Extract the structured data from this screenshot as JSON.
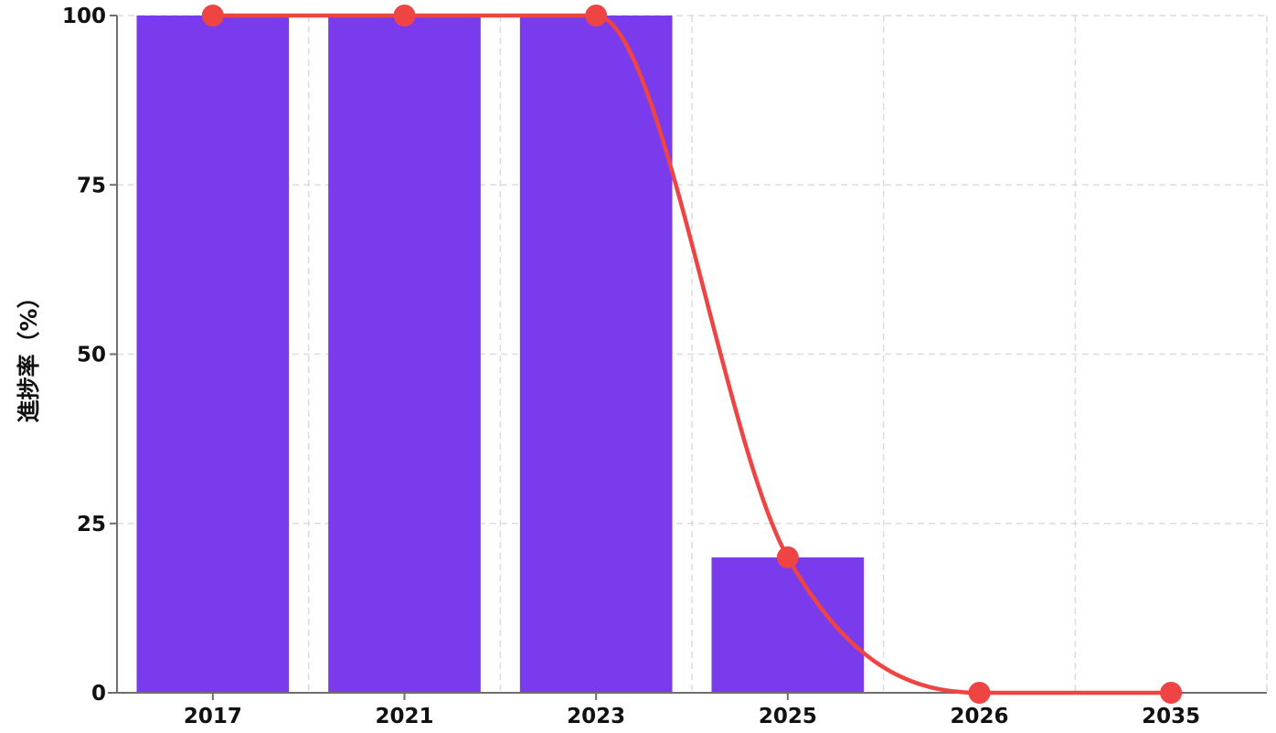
{
  "chart_data": {
    "type": "bar",
    "categories": [
      "2017",
      "2021",
      "2023",
      "2025",
      "2026",
      "2035"
    ],
    "series": [
      {
        "type": "bar",
        "values": [
          100,
          100,
          100,
          20,
          0,
          0
        ]
      },
      {
        "type": "line",
        "smooth": true,
        "values": [
          100,
          100,
          100,
          20,
          0,
          0
        ]
      }
    ],
    "ylabel": "進捗率（%）",
    "xlabel": "",
    "ylim": [
      0,
      100
    ],
    "yticks": [
      "0",
      "25",
      "50",
      "75",
      "100"
    ],
    "grid": true,
    "colors": {
      "bar": "#7a3bec",
      "line": "#ef4444"
    }
  }
}
